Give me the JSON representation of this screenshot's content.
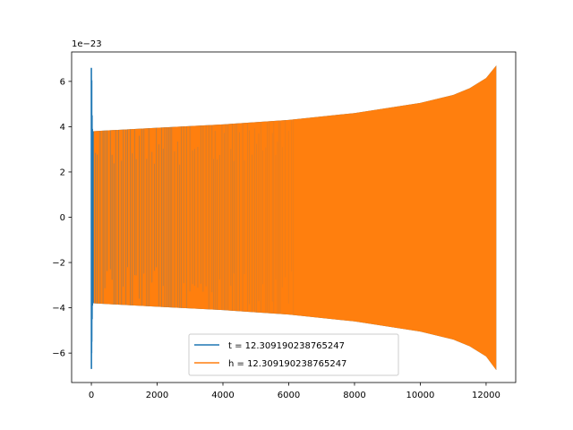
{
  "chart_data": {
    "type": "line",
    "offset_label": "1e−23",
    "xlim": [
      -600,
      12900
    ],
    "ylim": [
      -7.3,
      7.3
    ],
    "x_ticks": [
      0,
      2000,
      4000,
      6000,
      8000,
      10000,
      12000
    ],
    "y_ticks": [
      -6,
      -4,
      -2,
      0,
      2,
      4,
      6
    ],
    "x_tick_labels": [
      "0",
      "2000",
      "4000",
      "6000",
      "8000",
      "10000",
      "12000"
    ],
    "y_tick_labels": [
      "−6",
      "−4",
      "−2",
      "0",
      "2",
      "4",
      "6"
    ],
    "legend_position": "lower center",
    "series": [
      {
        "name": "t = 12.309190238765247",
        "color": "#1f77b4",
        "description_points": {
          "x": [
            0,
            5,
            10,
            20,
            30,
            50
          ],
          "upper": [
            6.6,
            6.0,
            6.05,
            4.5,
            3.9,
            3.8
          ],
          "lower": [
            -6.7,
            -6.0,
            -5.5,
            -4.5,
            -3.9,
            -3.8
          ]
        },
        "envelope": {
          "x": [
            50,
            2000,
            4000,
            6000,
            8000,
            10000,
            11000,
            11500,
            12000,
            12309
          ],
          "upper": [
            3.8,
            3.95,
            4.1,
            4.3,
            4.6,
            5.05,
            5.4,
            5.7,
            6.15,
            6.7
          ],
          "lower": [
            -3.8,
            -3.95,
            -4.1,
            -4.3,
            -4.6,
            -5.05,
            -5.4,
            -5.7,
            -6.15,
            -6.75
          ]
        }
      },
      {
        "name": "h = 12.309190238765247",
        "color": "#ff7f0e",
        "envelope": {
          "x": [
            50,
            2000,
            4000,
            6000,
            8000,
            10000,
            11000,
            11500,
            12000,
            12309
          ],
          "upper": [
            3.8,
            3.95,
            4.1,
            4.3,
            4.6,
            5.05,
            5.4,
            5.7,
            6.15,
            6.7
          ],
          "lower": [
            -3.8,
            -3.95,
            -4.1,
            -4.3,
            -4.6,
            -5.05,
            -5.4,
            -5.7,
            -6.15,
            -6.75
          ]
        }
      }
    ]
  }
}
